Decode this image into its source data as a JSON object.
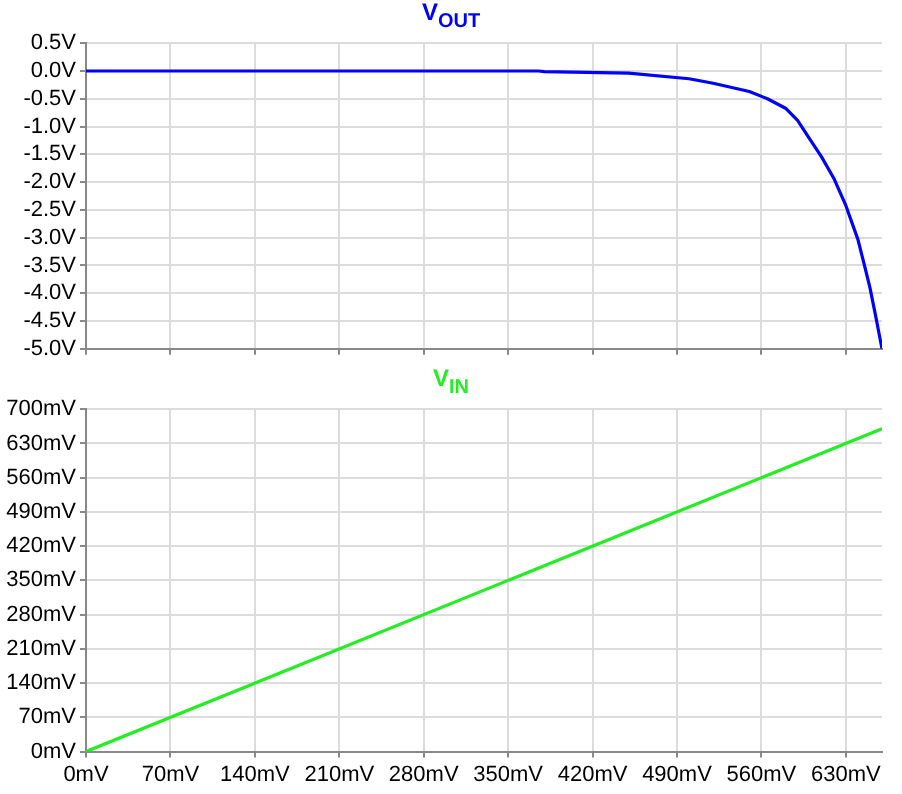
{
  "chart_data": [
    {
      "type": "line",
      "title": "V$_{OUT}$",
      "tick_labels": "y",
      "grid": true,
      "marker": "none",
      "line_style": "solid",
      "xlim": [
        0,
        660
      ],
      "xticks": [
        0,
        70,
        140,
        210,
        280,
        350,
        420,
        490,
        560,
        630
      ],
      "ylim": [
        -5,
        0.5
      ],
      "yticks": [
        {
          "value": 0.5,
          "label": "0.5V"
        },
        {
          "value": 0,
          "label": "0.0V"
        },
        {
          "value": -0.5,
          "label": "-0.5V"
        },
        {
          "value": -1,
          "label": "-1.0V"
        },
        {
          "value": -1.5,
          "label": "-1.5V"
        },
        {
          "value": -2,
          "label": "-2.0V"
        },
        {
          "value": -2.5,
          "label": "-2.5V"
        },
        {
          "value": -3,
          "label": "-3.0V"
        },
        {
          "value": -3.5,
          "label": "-3.5V"
        },
        {
          "value": -4,
          "label": "-4.0V"
        },
        {
          "value": -4.5,
          "label": "-4.5V"
        },
        {
          "value": -5,
          "label": "-5.0V"
        }
      ],
      "series": [
        {
          "color": "#0000ff",
          "x": [
            0,
            375,
            380,
            450,
            500,
            520,
            550,
            565,
            580,
            590,
            600,
            610,
            620,
            630,
            640,
            645,
            650,
            655,
            660
          ],
          "values": [
            0,
            0,
            -0.01,
            -0.04,
            -0.14,
            -0.22,
            -0.37,
            -0.5,
            -0.67,
            -0.89,
            -1.22,
            -1.55,
            -1.93,
            -2.42,
            -3.03,
            -3.46,
            -3.9,
            -4.44,
            -5
          ]
        }
      ]
    },
    {
      "type": "line",
      "title": "V$_{IN}$",
      "grid": true,
      "marker": "none",
      "line_style": "solid",
      "xlim": [
        0,
        660
      ],
      "xticks": [
        {
          "value": 0,
          "label": "0mV"
        },
        {
          "value": 70,
          "label": "70mV"
        },
        {
          "value": 140,
          "label": "140mV"
        },
        {
          "value": 210,
          "label": "210mV"
        },
        {
          "value": 280,
          "label": "280mV"
        },
        {
          "value": 350,
          "label": "350mV"
        },
        {
          "value": 420,
          "label": "420mV"
        },
        {
          "value": 490,
          "label": "490mV"
        },
        {
          "value": 560,
          "label": "560mV"
        },
        {
          "value": 630,
          "label": "630mV"
        }
      ],
      "ylim": [
        0,
        700
      ],
      "yticks": [
        {
          "value": 0,
          "label": "0mV"
        },
        {
          "value": 70,
          "label": "70mV"
        },
        {
          "value": 140,
          "label": "140mV"
        },
        {
          "value": 210,
          "label": "210mV"
        },
        {
          "value": 280,
          "label": "280mV"
        },
        {
          "value": 350,
          "label": "350mV"
        },
        {
          "value": 420,
          "label": "420mV"
        },
        {
          "value": 490,
          "label": "490mV"
        },
        {
          "value": 560,
          "label": "560mV"
        },
        {
          "value": 630,
          "label": "630mV"
        },
        {
          "value": 700,
          "label": "700mV"
        }
      ],
      "series": [
        {
          "color": "#22ee22",
          "x": [
            0,
            660
          ],
          "values": [
            0,
            660
          ]
        }
      ]
    }
  ]
}
